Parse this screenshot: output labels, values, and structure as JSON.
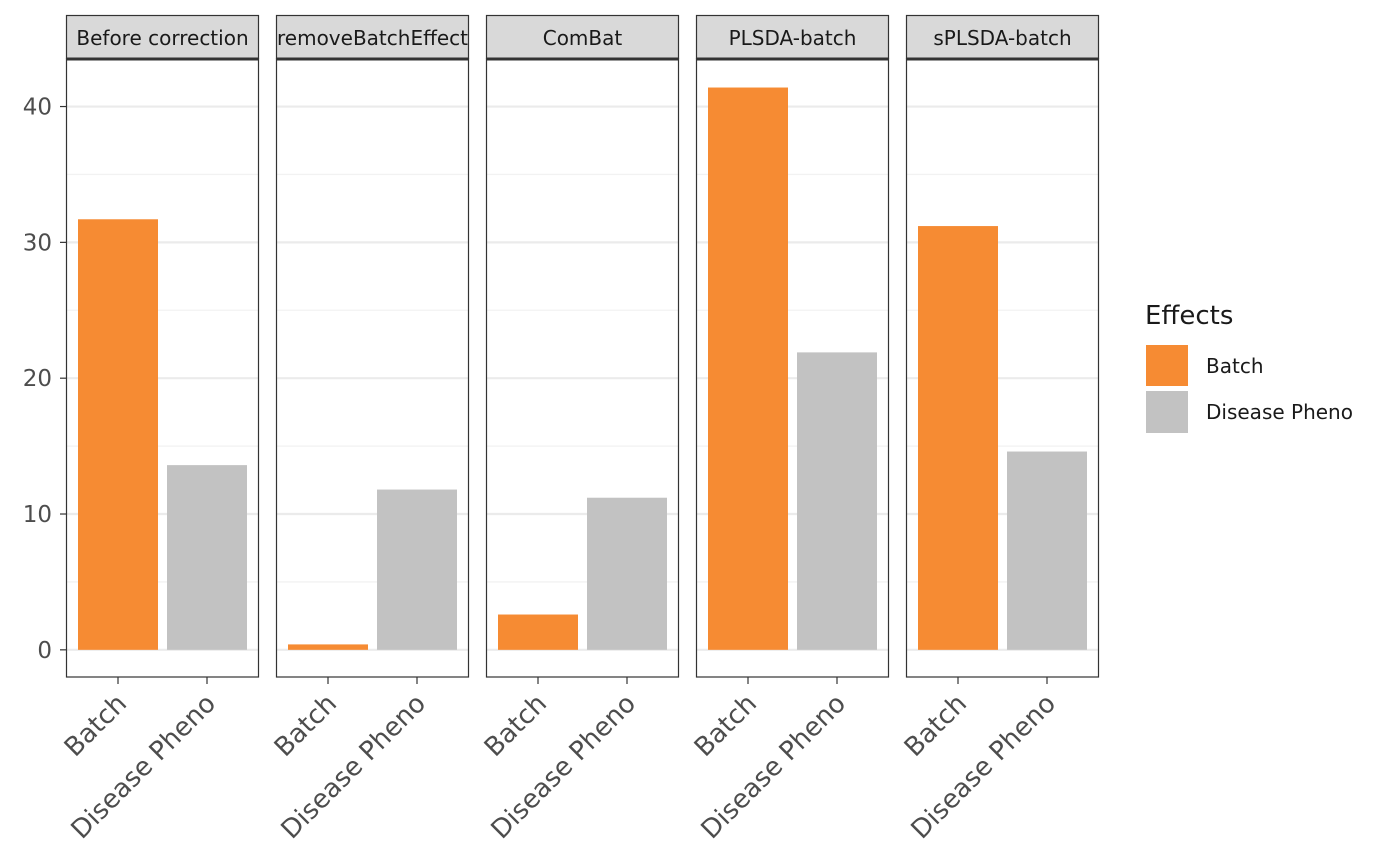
{
  "chart_data": {
    "type": "bar",
    "facets": [
      {
        "label": "Before correction",
        "values": [
          31.7,
          13.6
        ]
      },
      {
        "label": "removeBatchEffect",
        "values": [
          0.4,
          11.8
        ]
      },
      {
        "label": "ComBat",
        "values": [
          2.6,
          11.2
        ]
      },
      {
        "label": "PLSDA-batch",
        "values": [
          41.4,
          21.9
        ]
      },
      {
        "label": "sPLSDA-batch",
        "values": [
          31.2,
          14.6
        ]
      }
    ],
    "categories": [
      "Batch",
      "Disease Pheno"
    ],
    "ylim": [
      -2,
      43.5
    ],
    "y_ticks": [
      0,
      10,
      20,
      30,
      40
    ],
    "grid": true,
    "legend": {
      "title": "Effects",
      "position": "right",
      "items": [
        {
          "label": "Batch",
          "color": "#F68B33"
        },
        {
          "label": "Disease Pheno",
          "color": "#C2C2C2"
        }
      ]
    },
    "colors": {
      "Batch": "#F68B33",
      "Disease Pheno": "#C2C2C2"
    }
  }
}
